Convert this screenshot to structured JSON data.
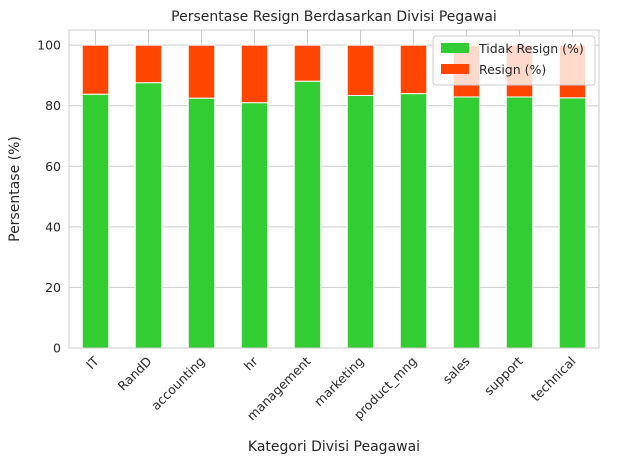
{
  "chart_data": {
    "type": "bar",
    "stacked": true,
    "title": "Persentase Resign Berdasarkan Divisi Pegawai",
    "xlabel": "Kategori Divisi Peagawai",
    "ylabel": "Persentase (%)",
    "ylim": [
      0,
      105
    ],
    "yticks": [
      "0",
      "20",
      "40",
      "60",
      "80",
      "100"
    ],
    "grid": true,
    "legend_position": "top-right",
    "categories": [
      "IT",
      "RandD",
      "accounting",
      "hr",
      "management",
      "marketing",
      "product_mng",
      "sales",
      "support",
      "technical"
    ],
    "series": [
      {
        "name": "Tidak Resign (%)",
        "color": "#32cd32",
        "values": [
          83.8,
          87.6,
          82.5,
          81.0,
          88.1,
          83.4,
          84.0,
          82.9,
          82.9,
          82.6
        ]
      },
      {
        "name": "Resign (%)",
        "color": "#ff4500",
        "values": [
          16.2,
          12.4,
          17.5,
          19.0,
          11.9,
          16.6,
          16.0,
          17.1,
          17.1,
          17.4
        ]
      }
    ]
  }
}
